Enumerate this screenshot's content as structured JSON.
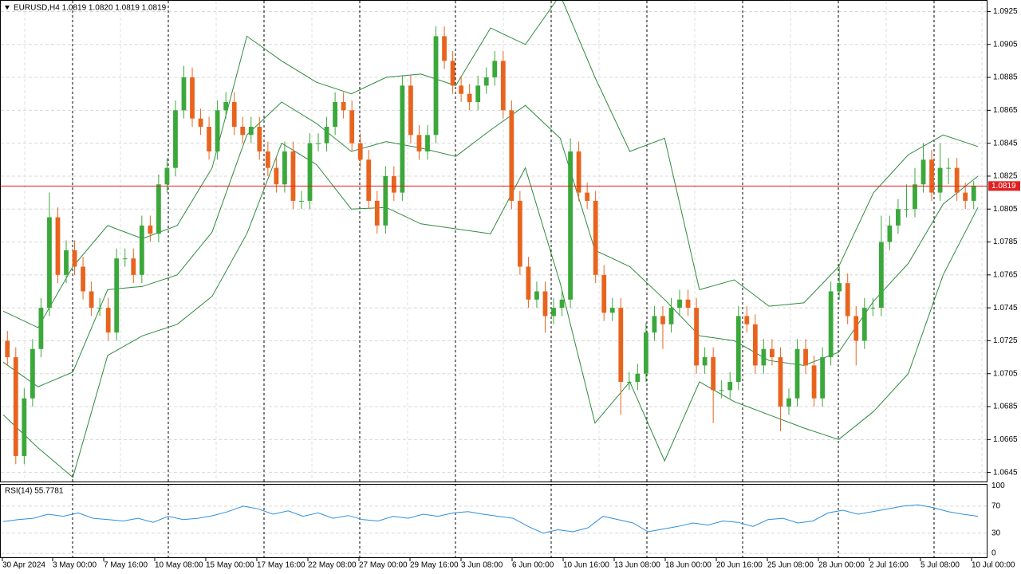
{
  "chart_data": {
    "type": "candlestick",
    "title": "EURUSD,H4  1.0819 1.0820 1.0819 1.0819",
    "ylim": [
      1.0639,
      1.0932
    ],
    "yticks": [
      1.0925,
      1.0905,
      1.0885,
      1.0865,
      1.0845,
      1.0825,
      1.0805,
      1.0785,
      1.0765,
      1.0745,
      1.0725,
      1.0705,
      1.0685,
      1.0665,
      1.0645
    ],
    "grid": true,
    "up_color": "#3aa83a",
    "down_color": "#e8641e",
    "last_price": 1.0819,
    "last_price_color": "#e02020",
    "x_labels": [
      "30 Apr 2024",
      "3 May 00:00",
      "7 May 16:00",
      "10 May 08:00",
      "15 May 00:00",
      "17 May 16:00",
      "22 May 08:00",
      "27 May 00:00",
      "29 May 16:00",
      "3 Jun 08:00",
      "6 Jun 00:00",
      "10 Jun 16:00",
      "13 Jun 08:00",
      "18 Jun 00:00",
      "20 Jun 16:00",
      "25 Jun 08:00",
      "28 Jun 00:00",
      "2 Jul 16:00",
      "5 Jul 08:00",
      "10 Jul 00:00"
    ],
    "candles": {
      "open": [
        1.0725,
        1.0715,
        1.0655,
        1.069,
        1.072,
        1.0745,
        1.08,
        1.0765,
        1.078,
        1.077,
        1.0755,
        1.0745,
        1.0745,
        1.073,
        1.0775,
        1.0775,
        1.0765,
        1.0795,
        1.079,
        1.082,
        1.083,
        1.0865,
        1.0885,
        1.086,
        1.0855,
        1.084,
        1.0865,
        1.087,
        1.0855,
        1.085,
        1.0855,
        1.084,
        1.083,
        1.082,
        1.084,
        1.081,
        1.081,
        1.0845,
        1.0845,
        1.0855,
        1.087,
        1.0865,
        1.0845,
        1.0835,
        1.081,
        1.0795,
        1.0825,
        1.0815,
        1.088,
        1.085,
        1.084,
        1.085,
        1.091,
        1.0895,
        1.088,
        1.0875,
        1.087,
        1.088,
        1.0885,
        1.0895,
        1.0865,
        1.081,
        1.077,
        1.075,
        1.0755,
        1.074,
        1.0745,
        1.075,
        1.084,
        1.0815,
        1.081,
        1.0765,
        1.0742,
        1.0745,
        1.07,
        1.07,
        1.0705,
        1.073,
        1.074,
        1.0735,
        1.0745,
        1.075,
        1.0745,
        1.071,
        1.0715,
        1.0695,
        1.0695,
        1.07,
        1.074,
        1.0735,
        1.071,
        1.072,
        1.0715,
        1.0685,
        1.069,
        1.072,
        1.071,
        1.069,
        1.0715,
        1.0755,
        1.076,
        1.074,
        1.0725,
        1.0745,
        1.0745,
        1.0785,
        1.0795,
        1.0805,
        1.0805,
        1.082,
        1.0835,
        1.0815,
        1.083,
        1.083,
        1.0815,
        1.081
      ],
      "high": [
        1.0731,
        1.0721,
        1.0696,
        1.0726,
        1.0751,
        1.0815,
        1.0806,
        1.0786,
        1.0786,
        1.0776,
        1.0761,
        1.0751,
        1.0751,
        1.0781,
        1.0781,
        1.0781,
        1.0801,
        1.0801,
        1.0826,
        1.0836,
        1.0871,
        1.0892,
        1.0891,
        1.0866,
        1.0861,
        1.0871,
        1.0876,
        1.0876,
        1.0861,
        1.0861,
        1.0861,
        1.0846,
        1.0836,
        1.0846,
        1.0846,
        1.0816,
        1.0851,
        1.0851,
        1.0861,
        1.0876,
        1.0876,
        1.0871,
        1.0851,
        1.0841,
        1.0816,
        1.0831,
        1.0831,
        1.0886,
        1.0886,
        1.0856,
        1.0856,
        1.0916,
        1.0916,
        1.0901,
        1.0886,
        1.0881,
        1.0886,
        1.0891,
        1.0901,
        1.0901,
        1.0871,
        1.0816,
        1.0776,
        1.0761,
        1.0761,
        1.0751,
        1.0756,
        1.0848,
        1.0846,
        1.0821,
        1.0816,
        1.0771,
        1.0751,
        1.0751,
        1.0706,
        1.0711,
        1.0736,
        1.0746,
        1.0746,
        1.0751,
        1.0756,
        1.0756,
        1.0751,
        1.0721,
        1.0721,
        1.0701,
        1.0706,
        1.0746,
        1.0746,
        1.0741,
        1.0726,
        1.0726,
        1.0721,
        1.0696,
        1.0726,
        1.0726,
        1.0716,
        1.0721,
        1.0761,
        1.077,
        1.0766,
        1.0746,
        1.0751,
        1.0751,
        1.0801,
        1.0801,
        1.0811,
        1.082,
        1.083,
        1.0845,
        1.0841,
        1.0845,
        1.0836,
        1.0836,
        1.0821,
        1.0822
      ],
      "low": [
        1.071,
        1.065,
        1.065,
        1.0685,
        1.0715,
        1.074,
        1.076,
        1.076,
        1.0765,
        1.075,
        1.074,
        1.074,
        1.0725,
        1.0725,
        1.077,
        1.076,
        1.076,
        1.0785,
        1.0785,
        1.0815,
        1.0825,
        1.086,
        1.0855,
        1.085,
        1.0835,
        1.0835,
        1.086,
        1.085,
        1.0845,
        1.0845,
        1.0835,
        1.0825,
        1.0815,
        1.0815,
        1.0805,
        1.0805,
        1.0805,
        1.084,
        1.084,
        1.085,
        1.086,
        1.084,
        1.083,
        1.0805,
        1.079,
        1.079,
        1.081,
        1.081,
        1.0845,
        1.0835,
        1.0835,
        1.0845,
        1.089,
        1.0875,
        1.087,
        1.0865,
        1.0865,
        1.0875,
        1.088,
        1.086,
        1.0805,
        1.0765,
        1.0745,
        1.0745,
        1.073,
        1.0735,
        1.074,
        1.0745,
        1.081,
        1.0805,
        1.076,
        1.0737,
        1.0737,
        1.068,
        1.0695,
        1.0695,
        1.07,
        1.0725,
        1.072,
        1.073,
        1.074,
        1.074,
        1.0705,
        1.0705,
        1.0675,
        1.069,
        1.069,
        1.0695,
        1.073,
        1.0705,
        1.0705,
        1.071,
        1.067,
        1.068,
        1.0685,
        1.0705,
        1.0685,
        1.0685,
        1.071,
        1.075,
        1.0735,
        1.071,
        1.072,
        1.074,
        1.074,
        1.078,
        1.079,
        1.08,
        1.08,
        1.0815,
        1.081,
        1.081,
        1.082,
        1.081,
        1.0805,
        1.0805
      ],
      "close": [
        1.0715,
        1.0655,
        1.069,
        1.072,
        1.0745,
        1.08,
        1.0765,
        1.078,
        1.077,
        1.0755,
        1.0745,
        1.0745,
        1.073,
        1.0775,
        1.0775,
        1.0765,
        1.0795,
        1.079,
        1.082,
        1.083,
        1.0865,
        1.0885,
        1.086,
        1.0855,
        1.084,
        1.0865,
        1.087,
        1.0855,
        1.085,
        1.0855,
        1.084,
        1.083,
        1.082,
        1.084,
        1.081,
        1.081,
        1.0845,
        1.0845,
        1.0855,
        1.087,
        1.0865,
        1.0845,
        1.0835,
        1.081,
        1.0795,
        1.0825,
        1.0815,
        1.088,
        1.085,
        1.084,
        1.085,
        1.091,
        1.0895,
        1.088,
        1.0875,
        1.087,
        1.088,
        1.0885,
        1.0895,
        1.0865,
        1.081,
        1.077,
        1.075,
        1.0755,
        1.074,
        1.0745,
        1.075,
        1.084,
        1.0815,
        1.081,
        1.0765,
        1.0742,
        1.0745,
        1.07,
        1.07,
        1.0705,
        1.073,
        1.074,
        1.0735,
        1.0745,
        1.075,
        1.0745,
        1.071,
        1.0715,
        1.0695,
        1.0695,
        1.07,
        1.074,
        1.0735,
        1.071,
        1.072,
        1.0715,
        1.0685,
        1.069,
        1.072,
        1.071,
        1.069,
        1.0715,
        1.0755,
        1.076,
        1.074,
        1.0725,
        1.0745,
        1.0745,
        1.0785,
        1.0795,
        1.0805,
        1.0805,
        1.082,
        1.0835,
        1.0815,
        1.083,
        1.083,
        1.0815,
        1.081,
        1.0819
      ]
    },
    "bollinger": {
      "color": "#2e8b3e",
      "upper": [
        1.0743,
        1.0733,
        1.077,
        1.0795,
        1.0787,
        1.0795,
        1.083,
        1.091,
        1.0895,
        1.0882,
        1.0875,
        1.0885,
        1.0887,
        1.088,
        1.0915,
        1.0905,
        1.0935,
        1.0885,
        1.084,
        1.0848,
        1.0756,
        1.0762,
        1.0746,
        1.0748,
        1.077,
        1.0815,
        1.0838,
        1.085,
        1.0843
      ],
      "middle": [
        1.0712,
        1.0697,
        1.0706,
        1.0756,
        1.0758,
        1.0765,
        1.0791,
        1.085,
        1.087,
        1.0857,
        1.084,
        1.0846,
        1.0842,
        1.0837,
        1.0853,
        1.0868,
        1.0848,
        1.078,
        1.077,
        1.075,
        1.0728,
        1.0725,
        1.0713,
        1.071,
        1.0718,
        1.0749,
        1.0772,
        1.0808,
        1.0825
      ],
      "lower": [
        1.068,
        1.066,
        1.0642,
        1.0716,
        1.0728,
        1.0735,
        1.0752,
        1.079,
        1.0845,
        1.0832,
        1.0805,
        1.0806,
        1.0796,
        1.0793,
        1.079,
        1.083,
        1.076,
        1.0675,
        1.07,
        1.0652,
        1.07,
        1.0688,
        1.068,
        1.0672,
        1.0665,
        1.0682,
        1.0705,
        1.0765,
        1.0806
      ]
    },
    "rsi": {
      "label": "RSI(14) 55.7781",
      "color": "#2f8fdf",
      "ylim": [
        -7,
        103
      ],
      "yticks": [
        0,
        30,
        70,
        100
      ],
      "values": [
        47,
        50,
        52,
        58,
        55,
        60,
        52,
        50,
        48,
        52,
        46,
        55,
        50,
        52,
        56,
        62,
        70,
        66,
        58,
        63,
        55,
        60,
        52,
        56,
        50,
        48,
        55,
        52,
        58,
        55,
        60,
        62,
        58,
        55,
        52,
        40,
        30,
        35,
        32,
        38,
        55,
        50,
        45,
        32,
        36,
        40,
        45,
        42,
        48,
        46,
        40,
        50,
        52,
        45,
        48,
        60,
        64,
        58,
        62,
        66,
        70,
        72,
        68,
        62,
        58,
        55
      ]
    }
  }
}
